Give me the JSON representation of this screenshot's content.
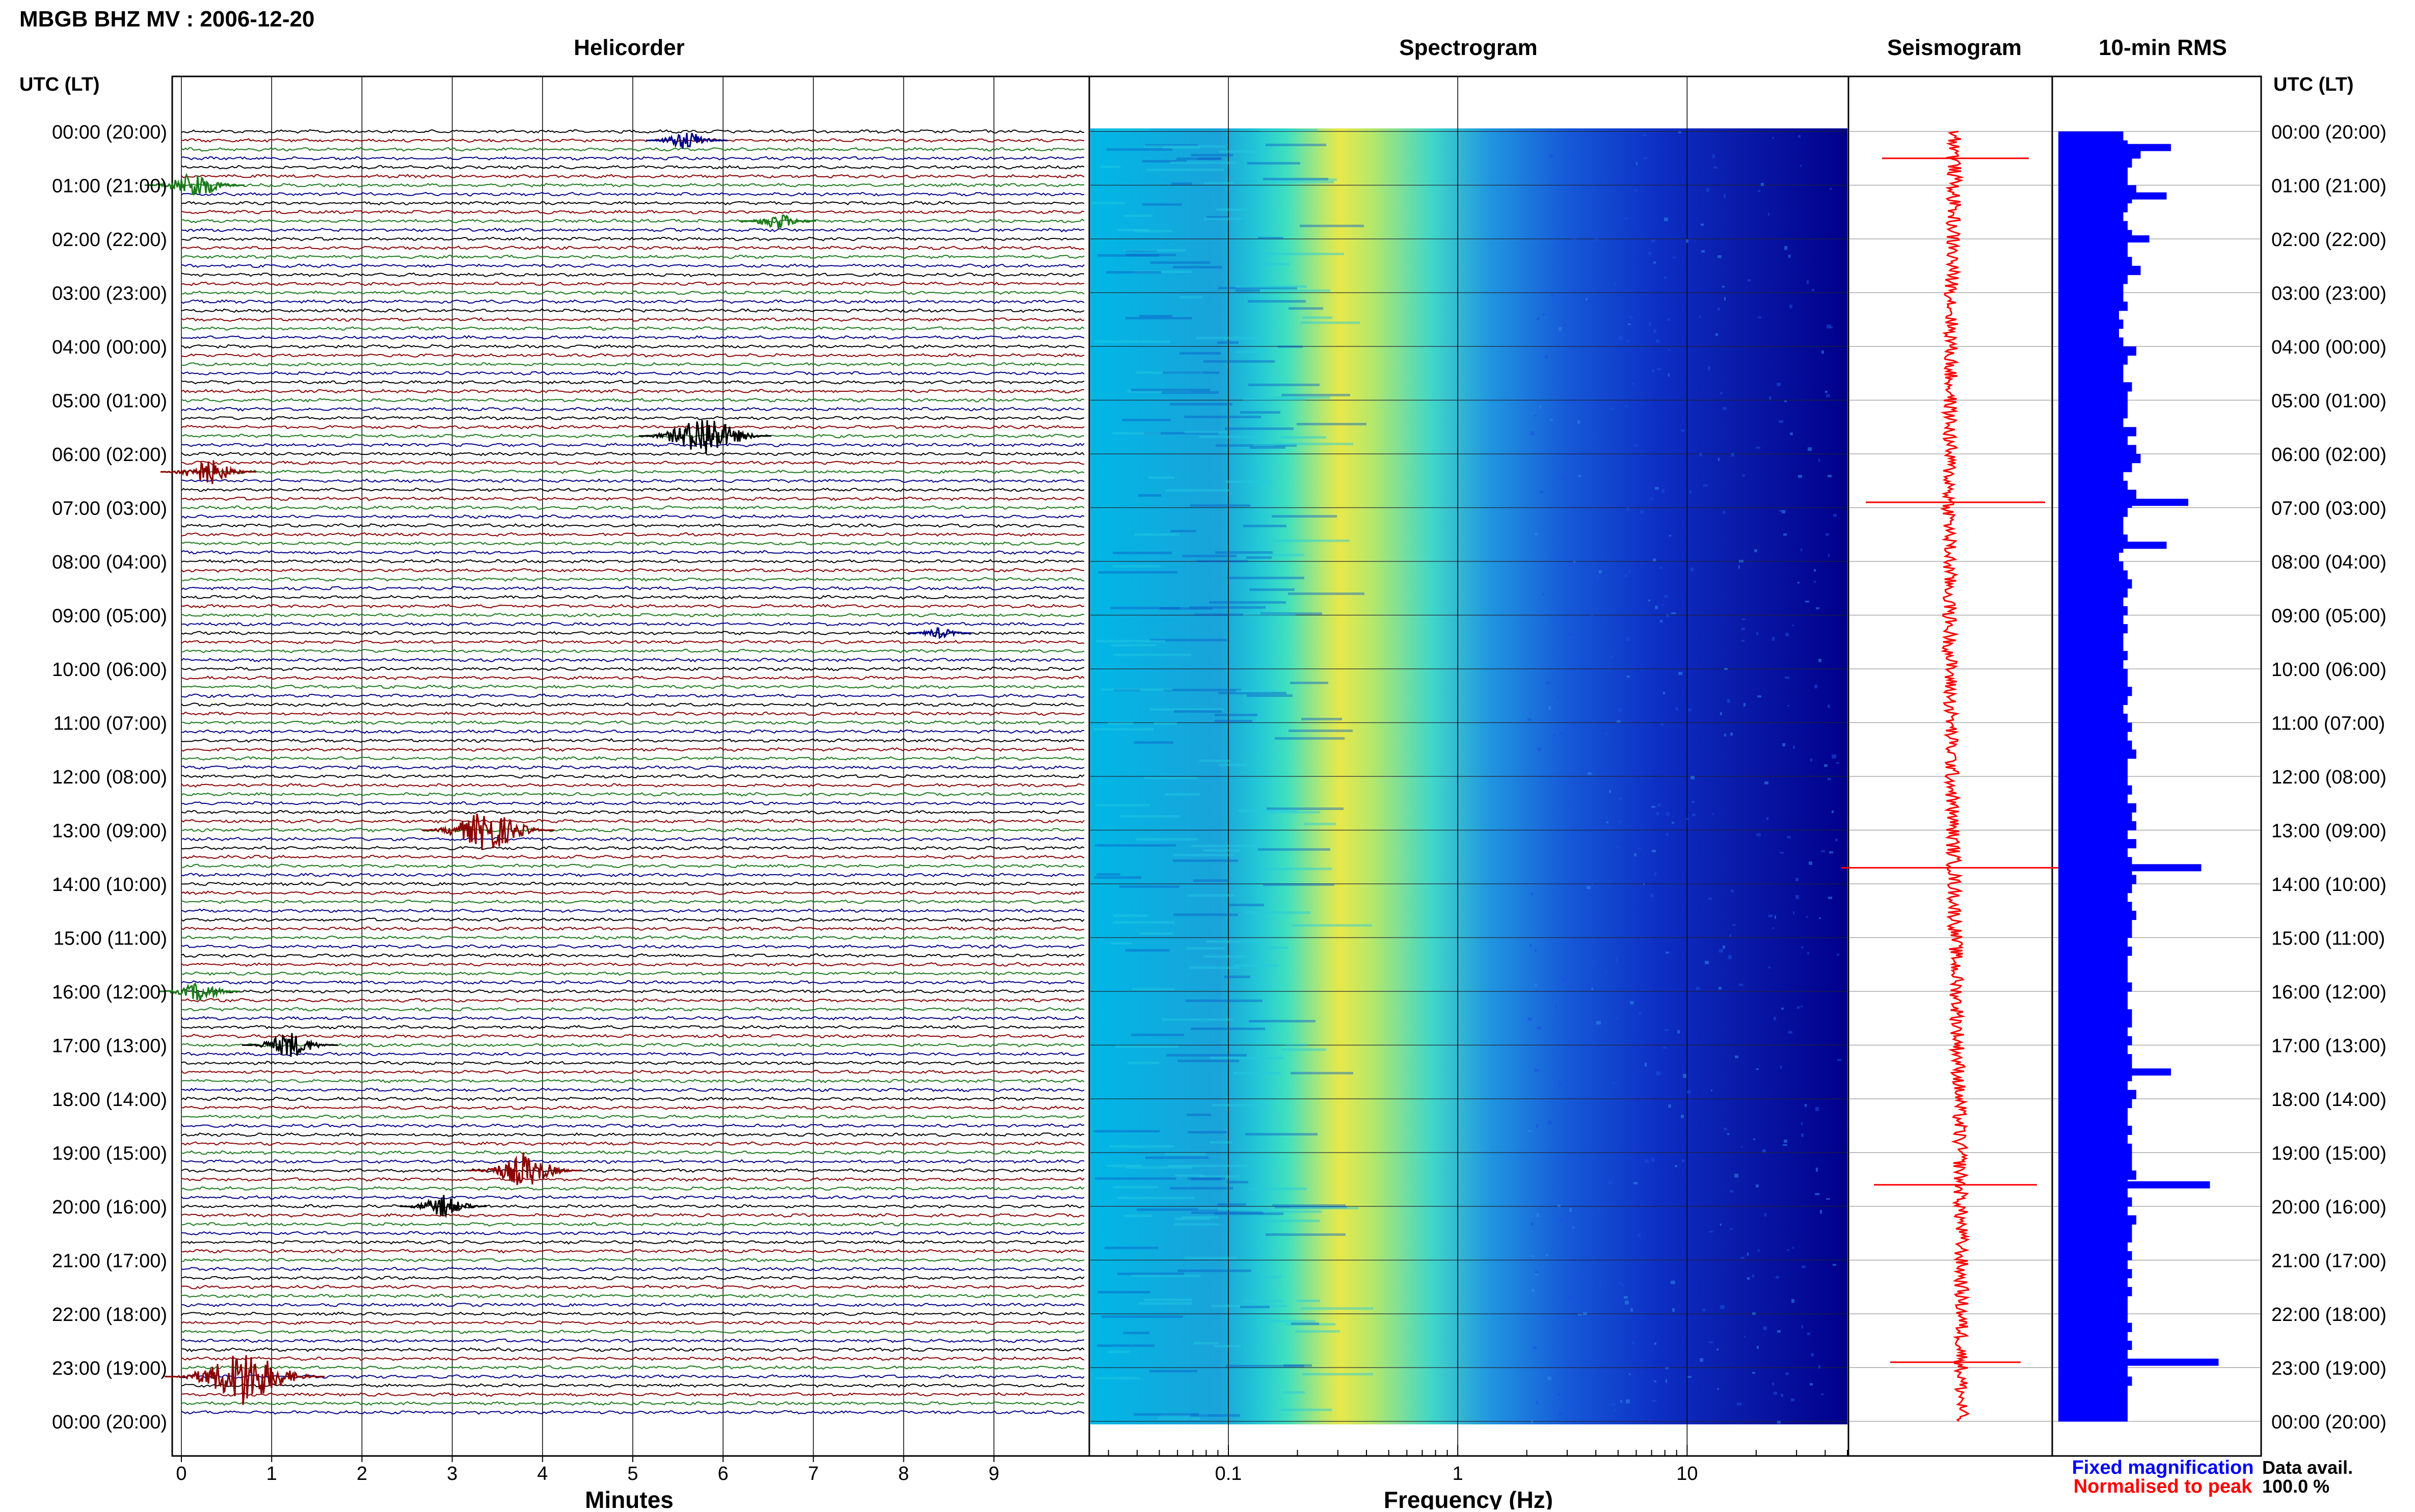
{
  "header": {
    "station_title": "MBGB BHZ MV : 2006-12-20",
    "utc_label_left": "UTC (LT)",
    "utc_label_right": "UTC (LT)"
  },
  "panels": {
    "helicorder": "Helicorder",
    "spectrogram": "Spectrogram",
    "seismogram": "Seismogram",
    "rms": "10-min RMS"
  },
  "time_labels": [
    "00:00 (20:00)",
    "01:00 (21:00)",
    "02:00 (22:00)",
    "03:00 (23:00)",
    "04:00 (00:00)",
    "05:00 (01:00)",
    "06:00 (02:00)",
    "07:00 (03:00)",
    "08:00 (04:00)",
    "09:00 (05:00)",
    "10:00 (06:00)",
    "11:00 (07:00)",
    "12:00 (08:00)",
    "13:00 (09:00)",
    "14:00 (10:00)",
    "15:00 (11:00)",
    "16:00 (12:00)",
    "17:00 (13:00)",
    "18:00 (14:00)",
    "19:00 (15:00)",
    "20:00 (16:00)",
    "21:00 (17:00)",
    "22:00 (18:00)",
    "23:00 (19:00)",
    "00:00 (20:00)"
  ],
  "colors": {
    "trace_cycle": [
      "#000000",
      "#8b0000",
      "#1a7a1a",
      "#00008b"
    ],
    "seismogram": "#ff0000",
    "rms_bar": "#0000ff",
    "legend_fixed": "#0000ff",
    "legend_normalised": "#ff0000",
    "spectro_bg": "#00008b"
  },
  "footer": {
    "legend_fixed": "Fixed magnification",
    "legend_normalised": "Normalised to peak",
    "data_avail_label": "Data avail.",
    "data_avail_value": "100.0 %"
  },
  "chart_data": [
    {
      "type": "line",
      "name": "helicorder",
      "title": "Helicorder",
      "xlabel": "Minutes",
      "x_ticks": [
        "0",
        "1",
        "2",
        "3",
        "4",
        "5",
        "6",
        "7",
        "8",
        "9"
      ],
      "xlim": [
        0,
        10
      ],
      "rows_per_hour": 6,
      "events": [
        {
          "row": 1,
          "minute": 5.6,
          "amp": 0.9,
          "color": "#00008b"
        },
        {
          "row": 6,
          "minute": 0.15,
          "amp": 1.3,
          "color": "#1a7a1a"
        },
        {
          "row": 10,
          "minute": 6.6,
          "amp": 0.8,
          "color": "#1a7a1a"
        },
        {
          "row": 34,
          "minute": 5.8,
          "amp": 2.0,
          "color": "#000000"
        },
        {
          "row": 38,
          "minute": 0.3,
          "amp": 1.2,
          "color": "#8b0000"
        },
        {
          "row": 56,
          "minute": 8.4,
          "amp": 0.5,
          "color": "#00008b"
        },
        {
          "row": 78,
          "minute": 3.4,
          "amp": 2.0,
          "color": "#8b0000"
        },
        {
          "row": 96,
          "minute": 0.2,
          "amp": 0.9,
          "color": "#1a7a1a"
        },
        {
          "row": 102,
          "minute": 1.2,
          "amp": 1.2,
          "color": "#000000"
        },
        {
          "row": 116,
          "minute": 3.8,
          "amp": 1.6,
          "color": "#8b0000"
        },
        {
          "row": 120,
          "minute": 2.9,
          "amp": 1.0,
          "color": "#000000"
        },
        {
          "row": 139,
          "minute": 0.7,
          "amp": 2.6,
          "color": "#8b0000"
        }
      ]
    },
    {
      "type": "heatmap",
      "name": "spectrogram",
      "title": "Spectrogram",
      "xlabel": "Frequency (Hz)",
      "x_scale": "log",
      "xlim": [
        0.025,
        50
      ],
      "x_ticks": [
        "0.1",
        "1",
        "10"
      ]
    },
    {
      "type": "line",
      "name": "seismogram",
      "title": "Seismogram",
      "spikes": [
        {
          "hour": 0.5,
          "amp": 0.45
        },
        {
          "hour": 6.9,
          "amp": 0.55
        },
        {
          "hour": 13.7,
          "amp": 0.7
        },
        {
          "hour": 19.6,
          "amp": 0.5
        },
        {
          "hour": 22.9,
          "amp": 0.4
        }
      ]
    },
    {
      "type": "bar",
      "name": "rms",
      "title": "10-min RMS",
      "values": [
        1.5,
        1.6,
        1.9,
        1.7,
        1.6,
        1.6,
        1.8,
        1.7,
        1.6,
        1.5,
        1.6,
        1.7,
        1.6,
        1.6,
        1.7,
        1.9,
        1.6,
        1.5,
        1.5,
        1.6,
        1.4,
        1.5,
        1.4,
        1.5,
        1.8,
        1.6,
        1.5,
        1.5,
        1.7,
        1.6,
        1.6,
        1.6,
        1.5,
        1.8,
        1.6,
        1.8,
        1.9,
        1.7,
        1.5,
        1.6,
        1.8,
        1.7,
        1.6,
        1.5,
        1.5,
        1.6,
        1.5,
        1.4,
        1.5,
        1.6,
        1.7,
        1.6,
        1.5,
        1.6,
        1.5,
        1.6,
        1.5,
        1.5,
        1.6,
        1.5,
        1.6,
        1.6,
        1.7,
        1.6,
        1.5,
        1.6,
        1.7,
        1.6,
        1.7,
        1.8,
        1.6,
        1.6,
        1.6,
        1.7,
        1.6,
        1.8,
        1.7,
        1.8,
        1.6,
        1.8,
        1.6,
        1.7,
        1.7,
        1.8,
        1.7,
        1.6,
        1.7,
        1.8,
        1.7,
        1.7,
        1.6,
        1.7,
        1.6,
        1.6,
        1.6,
        1.7,
        1.6,
        1.6,
        1.7,
        1.7,
        1.6,
        1.7,
        1.6,
        1.7,
        1.7,
        1.7,
        1.6,
        1.8,
        1.7,
        1.6,
        1.6,
        1.7,
        1.6,
        1.7,
        1.7,
        1.7,
        1.8,
        1.6,
        1.6,
        1.7,
        1.6,
        1.8,
        1.7,
        1.7,
        1.6,
        1.7,
        1.6,
        1.7,
        1.6,
        1.7,
        1.6,
        1.6,
        1.6,
        1.7,
        1.6,
        1.7,
        1.6,
        1.6,
        1.6,
        1.7,
        1.6,
        1.6,
        1.6,
        1.6
      ],
      "peaks": [
        {
          "hour": 0.3,
          "value": 2.6
        },
        {
          "hour": 1.2,
          "value": 2.5
        },
        {
          "hour": 2.0,
          "value": 2.1
        },
        {
          "hour": 6.9,
          "value": 3.0
        },
        {
          "hour": 7.7,
          "value": 2.5
        },
        {
          "hour": 13.7,
          "value": 3.3
        },
        {
          "hour": 17.5,
          "value": 2.6
        },
        {
          "hour": 19.6,
          "value": 3.5
        },
        {
          "hour": 22.9,
          "value": 3.7
        }
      ]
    }
  ]
}
